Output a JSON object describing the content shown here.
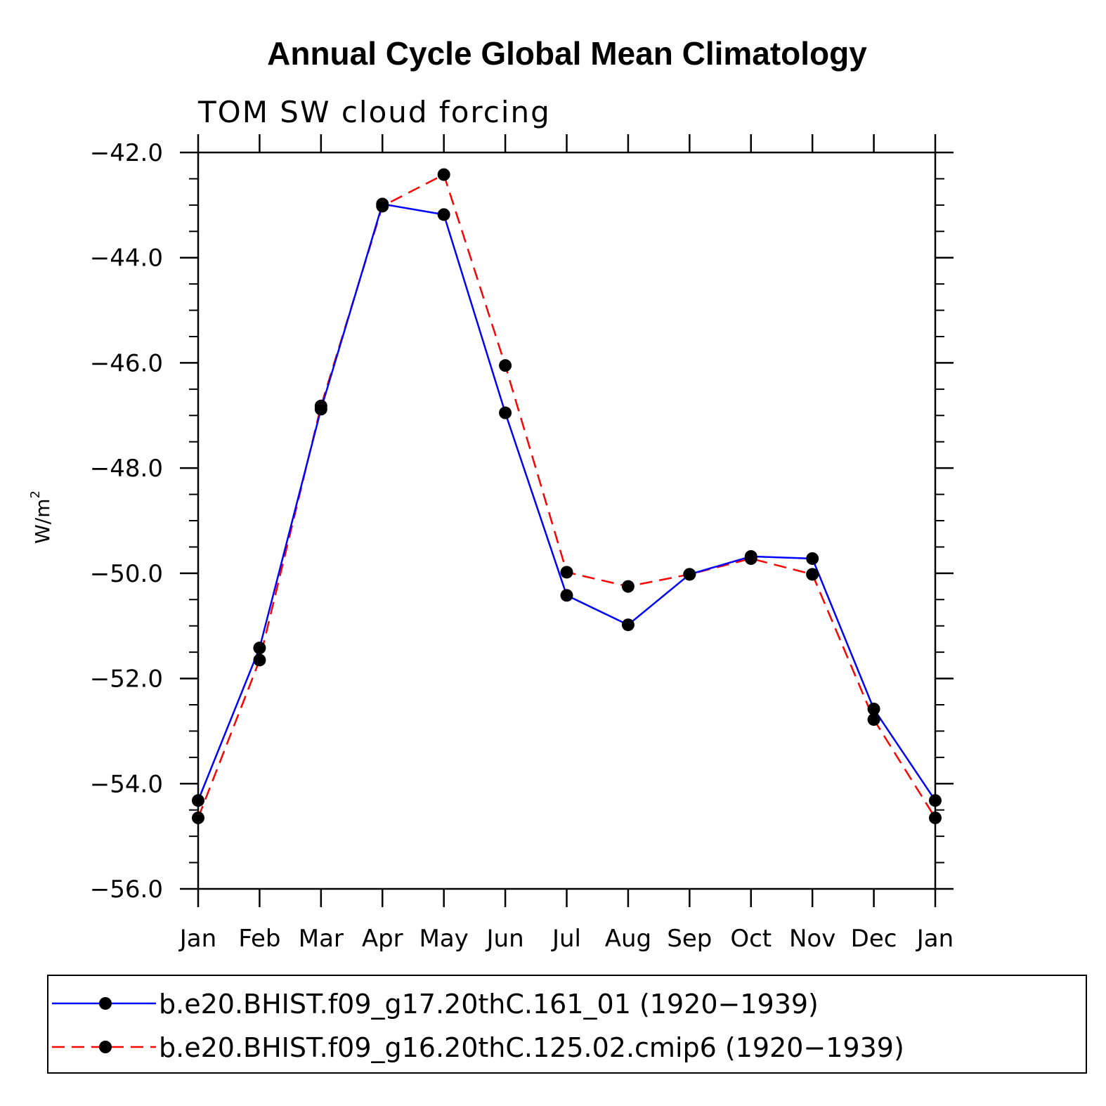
{
  "chart_data": {
    "type": "line",
    "title": "Annual Cycle Global Mean Climatology",
    "subtitle": "TOM SW cloud forcing",
    "ylabel": "W/m",
    "ylabel_sup": "2",
    "xlabel": "",
    "ylim": [
      -56.0,
      -42.0
    ],
    "yticks": [
      -42.0,
      -44.0,
      -46.0,
      -48.0,
      -50.0,
      -52.0,
      -54.0,
      -56.0
    ],
    "ytick_labels": [
      "−42.0",
      "−44.0",
      "−46.0",
      "−48.0",
      "−50.0",
      "−52.0",
      "−54.0",
      "−56.0"
    ],
    "categories": [
      "Jan",
      "Feb",
      "Mar",
      "Apr",
      "May",
      "Jun",
      "Jul",
      "Aug",
      "Sep",
      "Oct",
      "Nov",
      "Dec",
      "Jan"
    ],
    "grid": false,
    "legend_position": "bottom",
    "series": [
      {
        "name": "b.e20.BHIST.f09_g17.20thC.161_01 (1920−1939)",
        "color": "#0000ff",
        "style": "solid",
        "marker": "circle",
        "values": [
          -54.32,
          -51.42,
          -46.88,
          -42.98,
          -43.18,
          -46.95,
          -50.42,
          -50.98,
          -50.02,
          -49.68,
          -49.72,
          -52.58,
          -54.32
        ]
      },
      {
        "name": "b.e20.BHIST.f09_g16.20thC.125.02.cmip6 (1920−1939)",
        "color": "#ff0000",
        "style": "dashed",
        "marker": "circle",
        "values": [
          -54.65,
          -51.65,
          -46.82,
          -43.02,
          -42.42,
          -46.05,
          -49.98,
          -50.25,
          -50.02,
          -49.72,
          -50.02,
          -52.78,
          -54.65
        ]
      }
    ]
  }
}
